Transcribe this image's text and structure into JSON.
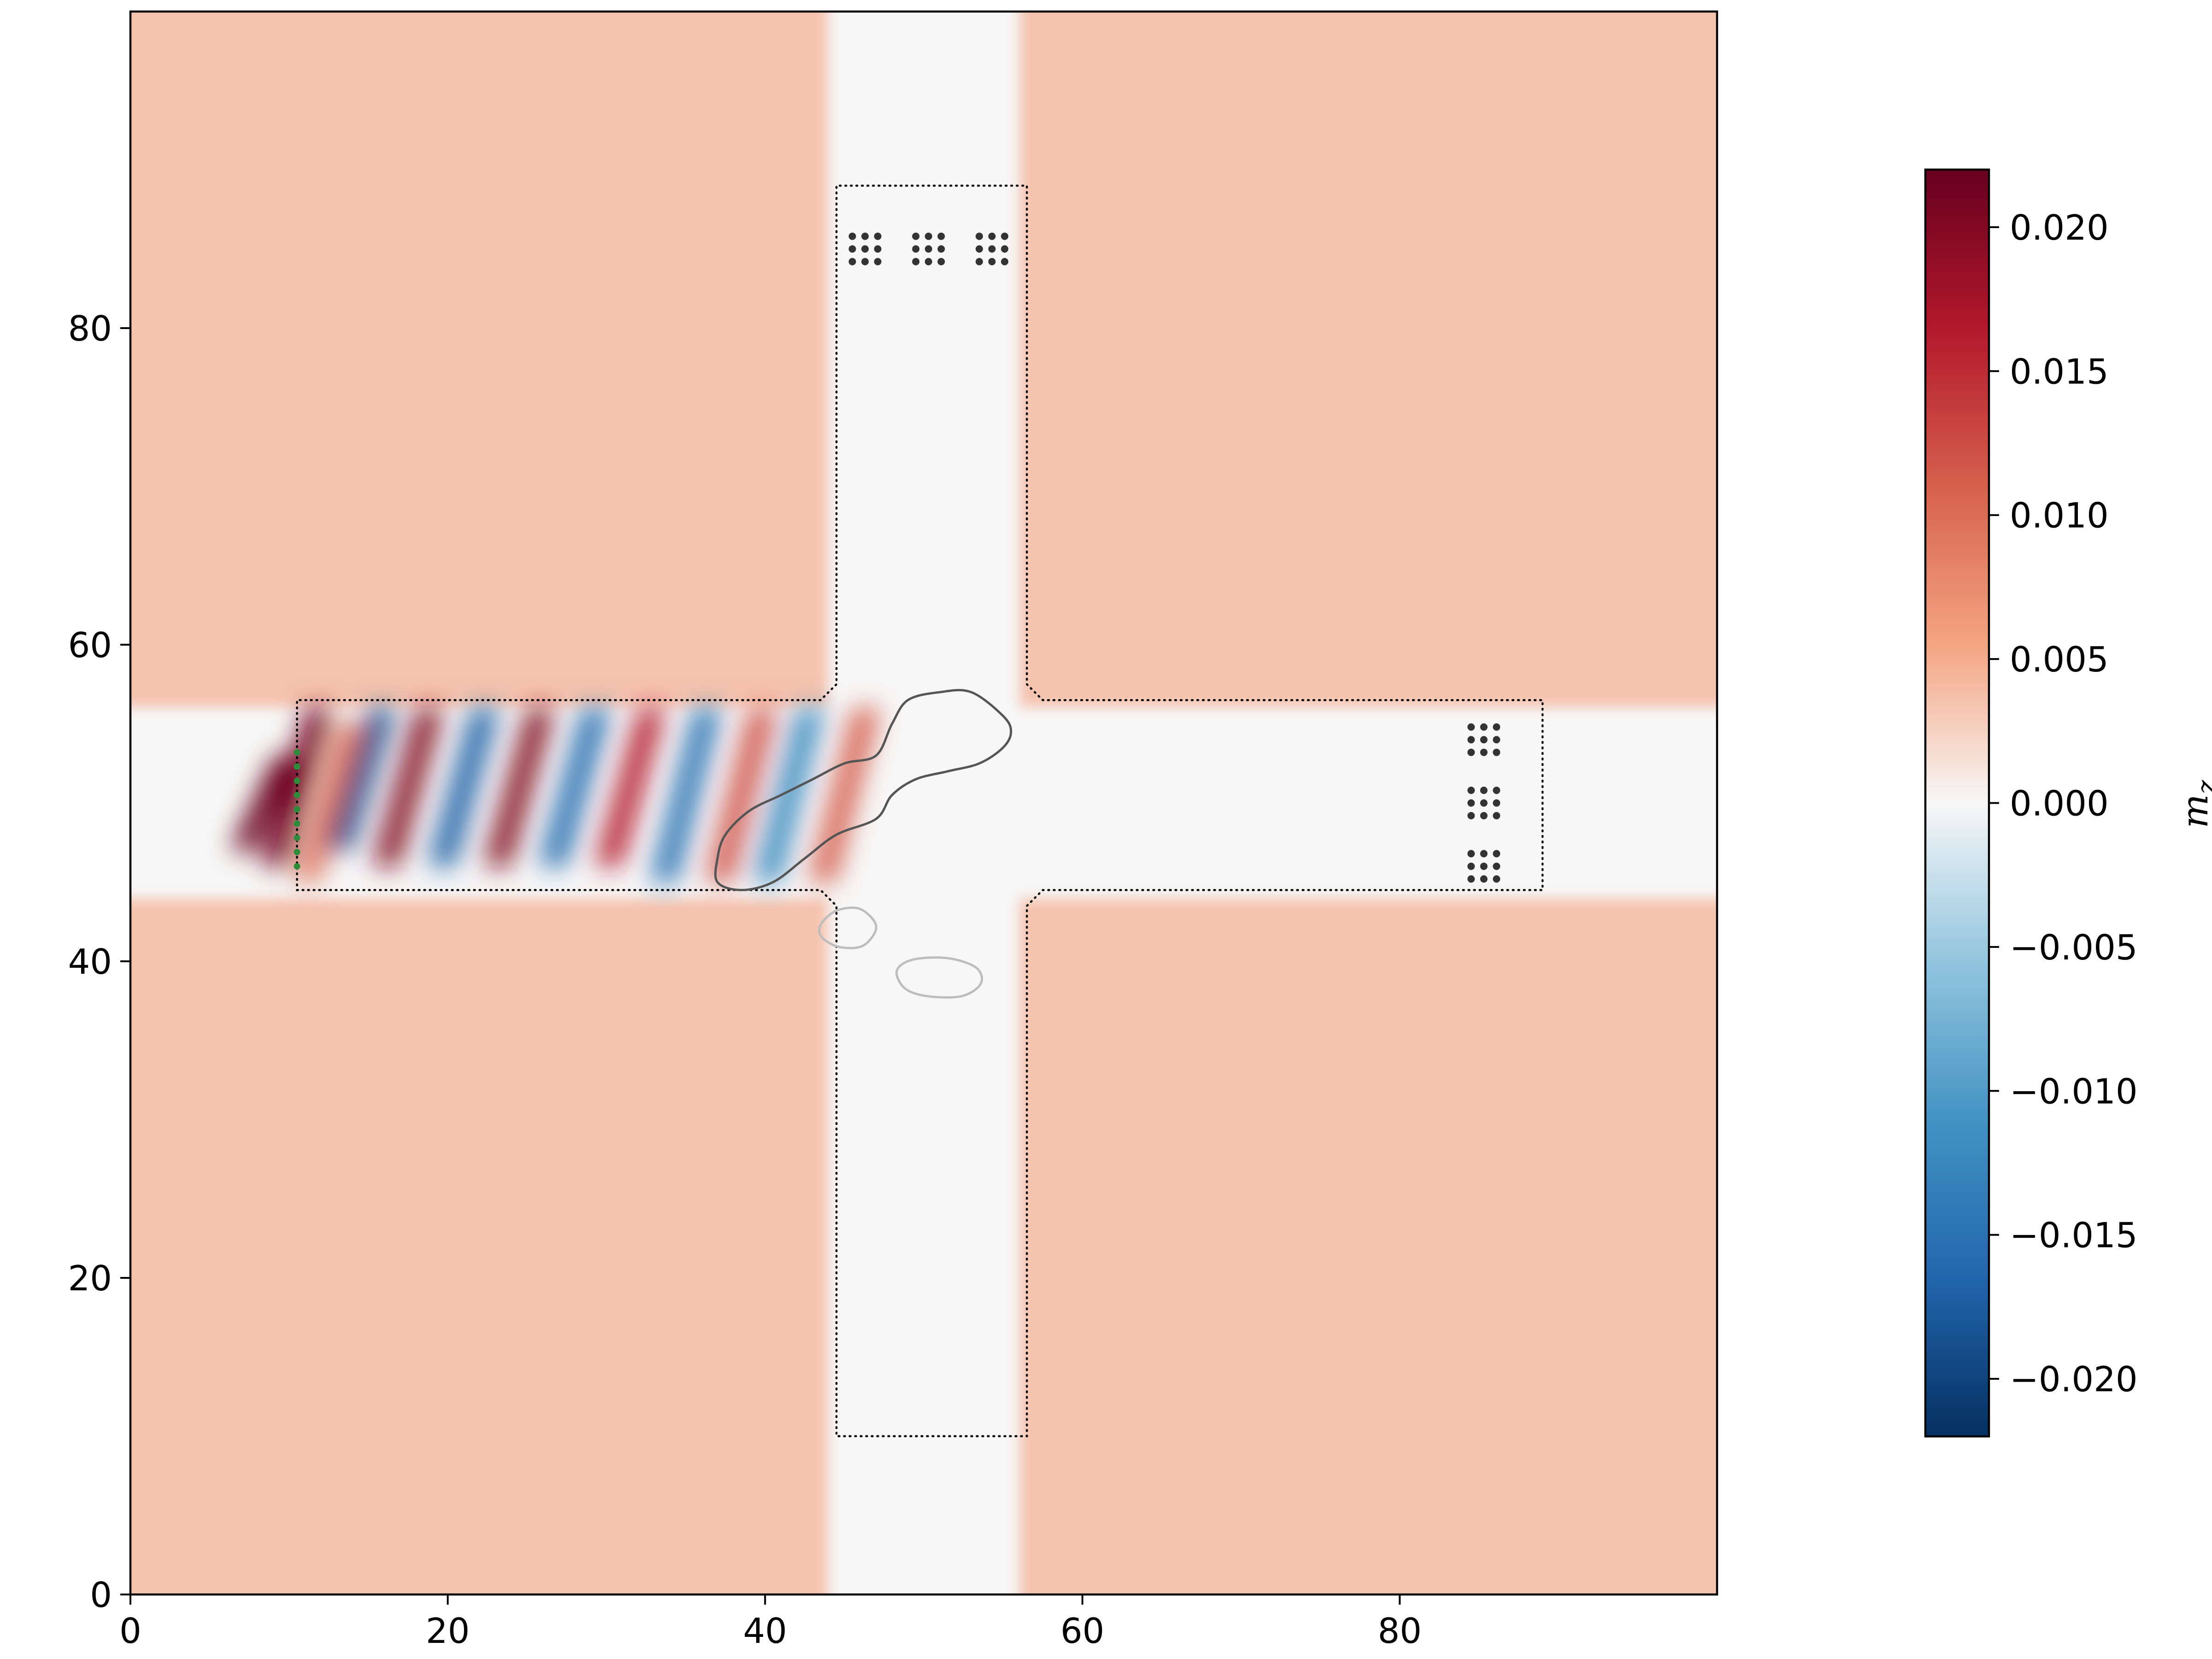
{
  "chart_data": {
    "type": "heatmap",
    "title": "",
    "xlabel": "",
    "ylabel": "",
    "xlim": [
      0,
      100
    ],
    "ylim": [
      0,
      100
    ],
    "x_ticks": [
      0,
      20,
      40,
      60,
      80
    ],
    "x_tick_labels": [
      "0",
      "20",
      "40",
      "60",
      "80"
    ],
    "y_ticks": [
      0,
      20,
      40,
      60,
      80
    ],
    "y_tick_labels": [
      "0",
      "20",
      "40",
      "60",
      "80"
    ],
    "colormap": "RdBu_r",
    "colorbar": {
      "label": "m",
      "label_subscript": "z",
      "range": [
        -0.022,
        0.022
      ],
      "ticks": [
        0.02,
        0.015,
        0.01,
        0.005,
        0.0,
        -0.005,
        -0.01,
        -0.015,
        -0.02
      ],
      "tick_labels": [
        "0.020",
        "0.015",
        "0.010",
        "0.005",
        "0.000",
        "−0.005",
        "−0.010",
        "−0.015",
        "−0.020"
      ]
    },
    "background_field": {
      "outside_waveguide_value": 0.0035,
      "inside_waveguide_value": 0.0
    },
    "waveguides": [
      {
        "name": "horizontal",
        "x": [
          0,
          100
        ],
        "y": [
          44,
          56
        ]
      },
      {
        "name": "vertical",
        "x": [
          44,
          56
        ],
        "y": [
          0,
          100
        ]
      }
    ],
    "design_region_outline": {
      "style": "dotted",
      "points": [
        [
          10.5,
          44.5
        ],
        [
          43.5,
          44.5
        ],
        [
          44.5,
          43.5
        ],
        [
          44.5,
          10
        ],
        [
          56.5,
          10
        ],
        [
          56.5,
          43.5
        ],
        [
          57.5,
          44.5
        ],
        [
          89,
          44.5
        ],
        [
          89,
          56.5
        ],
        [
          57.5,
          56.5
        ],
        [
          56.5,
          57.5
        ],
        [
          56.5,
          89
        ],
        [
          44.5,
          89
        ],
        [
          44.5,
          57.5
        ],
        [
          43.5,
          56.5
        ],
        [
          10.5,
          56.5
        ]
      ]
    },
    "wave_peaks": [
      {
        "x": 8.5,
        "value": 0.022,
        "y": [
          47,
          53
        ]
      },
      {
        "x": 10.5,
        "value": 0.021,
        "y": [
          46,
          56
        ]
      },
      {
        "x": 12.5,
        "value": 0.009,
        "y": [
          45,
          55
        ]
      },
      {
        "x": 14.5,
        "value": -0.019,
        "y": [
          47,
          56
        ]
      },
      {
        "x": 17.5,
        "value": 0.02,
        "y": [
          46,
          56
        ]
      },
      {
        "x": 21,
        "value": -0.017,
        "y": [
          46,
          56
        ]
      },
      {
        "x": 24.5,
        "value": 0.02,
        "y": [
          46,
          56
        ]
      },
      {
        "x": 28,
        "value": -0.016,
        "y": [
          46,
          56
        ]
      },
      {
        "x": 31.5,
        "value": 0.016,
        "y": [
          46,
          56
        ]
      },
      {
        "x": 35,
        "value": -0.015,
        "y": [
          45,
          56
        ]
      },
      {
        "x": 38.5,
        "value": 0.012,
        "y": [
          45,
          56
        ]
      },
      {
        "x": 41.5,
        "value": -0.012,
        "y": [
          45,
          56
        ]
      },
      {
        "x": 45,
        "value": 0.011,
        "y": [
          45,
          56
        ]
      }
    ],
    "contours": [
      {
        "style": "dark",
        "points": [
          [
            37.5,
            48
          ],
          [
            39,
            49.5
          ],
          [
            41,
            50.5
          ],
          [
            43,
            51.5
          ],
          [
            45,
            52.5
          ],
          [
            47,
            53
          ],
          [
            48,
            55
          ],
          [
            49,
            56.5
          ],
          [
            51,
            57
          ],
          [
            53,
            57
          ],
          [
            55,
            55.5
          ],
          [
            55.5,
            54.5
          ],
          [
            55,
            53.5
          ],
          [
            53.5,
            52.5
          ],
          [
            51.5,
            52
          ],
          [
            49.5,
            51.5
          ],
          [
            48,
            50.5
          ],
          [
            47,
            49
          ],
          [
            44.5,
            48
          ],
          [
            42.5,
            46.5
          ],
          [
            40.5,
            45
          ],
          [
            38.5,
            44.5
          ],
          [
            37,
            45
          ],
          [
            37,
            46.5
          ]
        ]
      },
      {
        "style": "light",
        "points": [
          [
            43.5,
            42.3
          ],
          [
            44.5,
            43.2
          ],
          [
            46,
            43.3
          ],
          [
            47,
            42.2
          ],
          [
            46.2,
            41
          ],
          [
            44.7,
            40.9
          ],
          [
            43.6,
            41.5
          ]
        ]
      },
      {
        "style": "light",
        "points": [
          [
            48.3,
            39.4
          ],
          [
            49.3,
            40.1
          ],
          [
            51.5,
            40.2
          ],
          [
            53.3,
            39.6
          ],
          [
            53.6,
            38.6
          ],
          [
            52.4,
            37.8
          ],
          [
            50.2,
            37.8
          ],
          [
            48.8,
            38.3
          ]
        ]
      }
    ],
    "detector_groups": [
      {
        "x": [
          45.5,
          46.3,
          47.1
        ],
        "y": [
          85.8,
          85,
          84.2
        ]
      },
      {
        "x": [
          49.5,
          50.3,
          51.1
        ],
        "y": [
          85.8,
          85,
          84.2
        ]
      },
      {
        "x": [
          53.5,
          54.3,
          55.1
        ],
        "y": [
          85.8,
          85,
          84.2
        ]
      },
      {
        "x": [
          84.5,
          85.3,
          86.1
        ],
        "y": [
          54.8,
          54,
          53.2
        ]
      },
      {
        "x": [
          84.5,
          85.3,
          86.1
        ],
        "y": [
          50.8,
          50,
          49.2
        ]
      },
      {
        "x": [
          84.5,
          85.3,
          86.1
        ],
        "y": [
          46.8,
          46,
          45.2
        ]
      }
    ],
    "source": {
      "x": 10.5,
      "y": [
        46,
        54
      ]
    }
  }
}
